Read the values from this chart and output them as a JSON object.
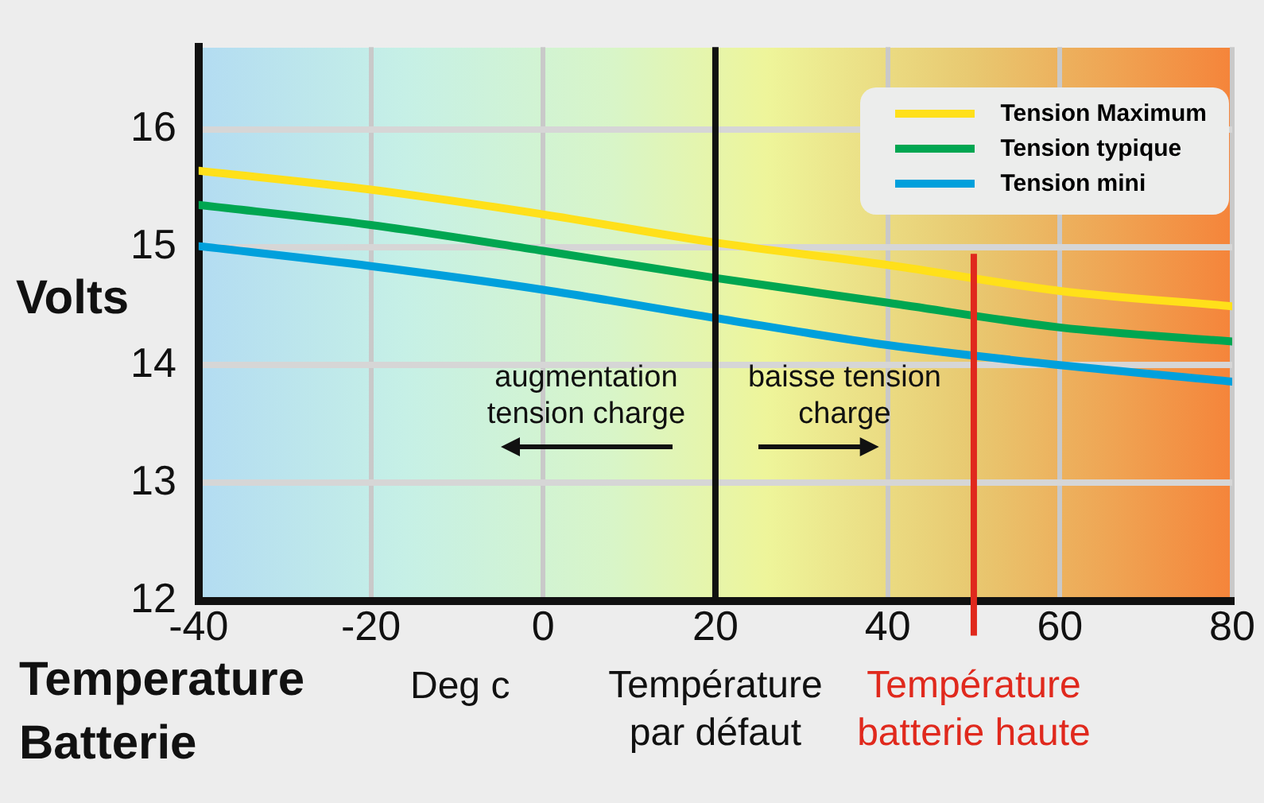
{
  "chart_data": {
    "type": "line",
    "xlabel": "Temperature Batterie",
    "ylabel": "Volts",
    "x": [
      -40,
      -20,
      0,
      20,
      40,
      60,
      80
    ],
    "series": [
      {
        "name": "Tension Maximum",
        "color": "#ffe01a",
        "values": [
          15.65,
          15.49,
          15.28,
          15.04,
          14.85,
          14.63,
          14.5
        ]
      },
      {
        "name": "Tension typique",
        "color": "#00a651",
        "values": [
          15.36,
          15.19,
          14.97,
          14.74,
          14.53,
          14.32,
          14.2
        ]
      },
      {
        "name": "Tension mini",
        "color": "#00a0dc",
        "values": [
          15.01,
          14.84,
          14.64,
          14.4,
          14.17,
          14.0,
          13.86
        ]
      }
    ],
    "xlim": [
      -40,
      80
    ],
    "xticks": [
      -40,
      -20,
      0,
      20,
      40,
      60,
      80
    ],
    "ylim": [
      12,
      16.7
    ],
    "yticks": [
      12,
      13,
      14,
      15,
      16
    ],
    "grid": true,
    "legend": "top right",
    "ref_lines": [
      {
        "axis": "x",
        "value": 20,
        "label": "Température par défaut",
        "color": "#111111"
      },
      {
        "axis": "x",
        "value": 50,
        "label": "Température batterie haute",
        "color": "#e0291d"
      }
    ],
    "annotations": [
      "Deg c",
      "augmentation tension charge",
      "baisse tension charge"
    ]
  }
}
